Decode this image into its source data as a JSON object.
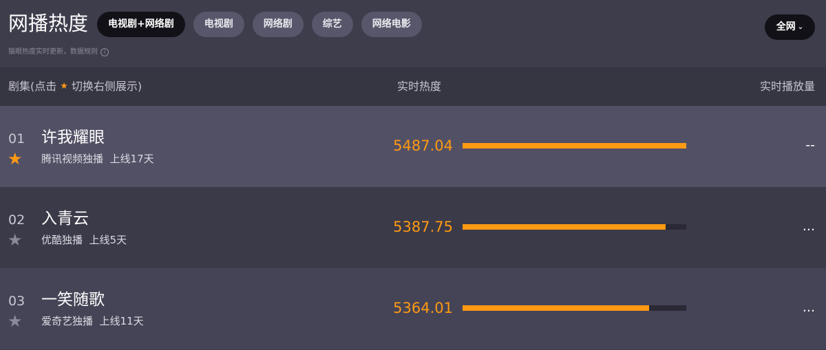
{
  "header": {
    "title": "网播热度",
    "subtitle": "猫眼热度实时更新，数据规则",
    "info_icon": "ⓘ",
    "region": "全网",
    "region_chevron": "⌄"
  },
  "tabs": [
    {
      "label": "电视剧+网络剧",
      "active": true
    },
    {
      "label": "电视剧"
    },
    {
      "label": "网络剧"
    },
    {
      "label": "综艺"
    },
    {
      "label": "网络电影"
    }
  ],
  "columns": {
    "series_prefix": "剧集(点击",
    "series_suffix": "切换右侧展示)",
    "heat": "实时热度",
    "plays": "实时播放量"
  },
  "colors": {
    "accent": "#ff9a12"
  },
  "rows": [
    {
      "rank": "01",
      "name": "许我耀眼",
      "meta": "腾讯视频独播  上线17天",
      "heat": "5487.04",
      "bar_fraction": 1.0,
      "plays": "--",
      "starred": true
    },
    {
      "rank": "02",
      "name": "入青云",
      "meta": "优酷独播  上线5天",
      "heat": "5387.75",
      "bar_fraction": 0.908,
      "plays": "...",
      "starred": false
    },
    {
      "rank": "03",
      "name": "一笑随歌",
      "meta": "爱奇艺独播  上线11天",
      "heat": "5364.01",
      "bar_fraction": 0.834,
      "plays": "...",
      "starred": false
    }
  ]
}
